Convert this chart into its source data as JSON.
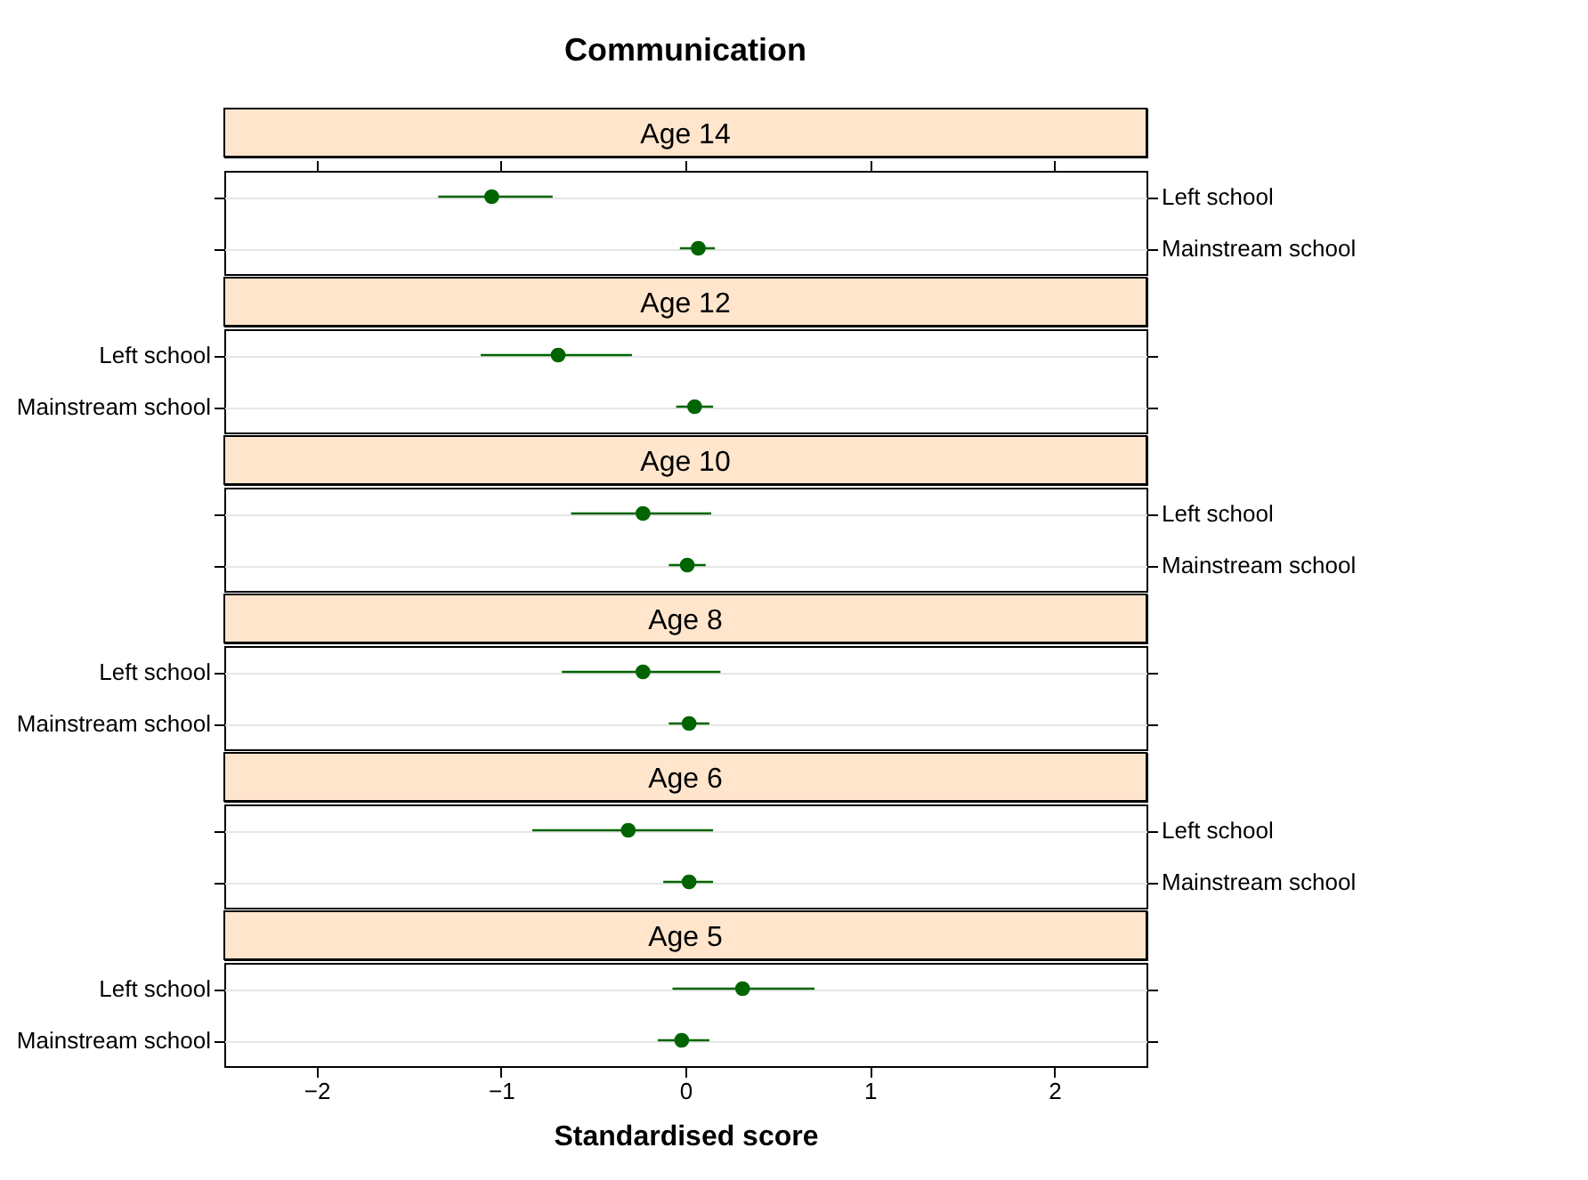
{
  "chart_data": [
    {
      "type": "scatter",
      "title": "Communication",
      "subtitle": "Age 14",
      "orientation": "horizontal",
      "categories": [
        "Left school",
        "Mainstream school"
      ],
      "series": [
        {
          "color": "#006400",
          "values": [
            -1.05,
            0.07
          ],
          "errors": [
            [
              -1.34,
              -0.72
            ],
            [
              -0.03,
              0.16
            ]
          ]
        }
      ],
      "xlim": [
        -2.5,
        2.5
      ],
      "xticks": [
        -2,
        -1,
        0,
        1,
        2
      ],
      "tick_labels": "y",
      "grid": "y",
      "marker": "circle",
      "legend": false
    },
    {
      "type": "scatter",
      "subtitle": "Age 12",
      "orientation": "horizontal",
      "categories": [
        "Left school",
        "Mainstream school"
      ],
      "series": [
        {
          "color": "#006400",
          "values": [
            -0.69,
            0.05
          ],
          "errors": [
            [
              -1.11,
              -0.29
            ],
            [
              -0.05,
              0.15
            ]
          ]
        }
      ],
      "xlim": [
        -2.5,
        2.5
      ],
      "xticks": [
        -2,
        -1,
        0,
        1,
        2
      ],
      "tick_labels": "y",
      "grid": "y",
      "marker": "circle",
      "legend": false
    },
    {
      "type": "scatter",
      "subtitle": "Age 10",
      "orientation": "horizontal",
      "categories": [
        "Left school",
        "Mainstream school"
      ],
      "series": [
        {
          "color": "#006400",
          "values": [
            -0.23,
            0.01
          ],
          "errors": [
            [
              -0.62,
              0.14
            ],
            [
              -0.09,
              0.11
            ]
          ]
        }
      ],
      "xlim": [
        -2.5,
        2.5
      ],
      "xticks": [
        -2,
        -1,
        0,
        1,
        2
      ],
      "tick_labels": "y",
      "grid": "y",
      "marker": "circle",
      "legend": false
    },
    {
      "type": "scatter",
      "subtitle": "Age 8",
      "orientation": "horizontal",
      "categories": [
        "Left school",
        "Mainstream school"
      ],
      "series": [
        {
          "color": "#006400",
          "values": [
            -0.23,
            0.02
          ],
          "errors": [
            [
              -0.67,
              0.19
            ],
            [
              -0.09,
              0.13
            ]
          ]
        }
      ],
      "xlim": [
        -2.5,
        2.5
      ],
      "xticks": [
        -2,
        -1,
        0,
        1,
        2
      ],
      "tick_labels": "y",
      "grid": "y",
      "marker": "circle",
      "legend": false
    },
    {
      "type": "scatter",
      "subtitle": "Age 6",
      "orientation": "horizontal",
      "categories": [
        "Left school",
        "Mainstream school"
      ],
      "series": [
        {
          "color": "#006400",
          "values": [
            -0.31,
            0.02
          ],
          "errors": [
            [
              -0.83,
              0.15
            ],
            [
              -0.12,
              0.15
            ]
          ]
        }
      ],
      "xlim": [
        -2.5,
        2.5
      ],
      "xticks": [
        -2,
        -1,
        0,
        1,
        2
      ],
      "tick_labels": "y",
      "grid": "y",
      "marker": "circle",
      "legend": false
    },
    {
      "type": "scatter",
      "subtitle": "Age 5",
      "xlabel": "Standardised score",
      "orientation": "horizontal",
      "categories": [
        "Left school",
        "Mainstream school"
      ],
      "series": [
        {
          "color": "#006400",
          "values": [
            0.31,
            -0.02
          ],
          "errors": [
            [
              -0.07,
              0.7
            ],
            [
              -0.15,
              0.13
            ]
          ]
        }
      ],
      "xlim": [
        -2.5,
        2.5
      ],
      "xticks": [
        -2,
        -1,
        0,
        1,
        2
      ],
      "grid": "y",
      "marker": "circle",
      "legend": false
    }
  ]
}
